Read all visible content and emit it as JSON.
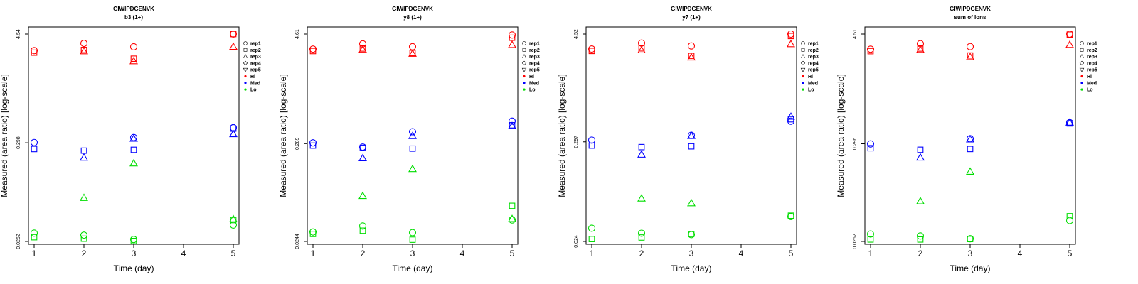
{
  "figure": {
    "shared_x_label": "Time (day)",
    "shared_y_label": "Measured (area ratio) [log-scale]",
    "legend": [
      {
        "label": "rep1",
        "shape": "circle"
      },
      {
        "label": "rep2",
        "shape": "square"
      },
      {
        "label": "rep3",
        "shape": "triangle"
      },
      {
        "label": "rep4",
        "shape": "diamond"
      },
      {
        "label": "rep5",
        "shape": "down-triangle"
      },
      {
        "label": "Hi",
        "shape": "dot",
        "color": "#ff0000"
      },
      {
        "label": "Med",
        "shape": "dot",
        "color": "#0000ff"
      },
      {
        "label": "Lo",
        "shape": "dot",
        "color": "#00dd00"
      }
    ],
    "colors": {
      "Hi": "#ff0000",
      "Med": "#0000ff",
      "Lo": "#00dd00",
      "axis": "#000000"
    }
  },
  "chart_data": [
    {
      "type": "scatter",
      "title": "GIWIPDGENVK",
      "subtitle": "b3 (1+)",
      "xlabel": "Time (day)",
      "ylabel": "Measured (area ratio) [log-scale]",
      "x_ticks": [
        "1",
        "2",
        "3",
        "4",
        "5"
      ],
      "xlim": [
        1,
        5
      ],
      "y_ticks": [
        "0.0252",
        "0.298",
        "4.54"
      ],
      "ylim": [
        0.0252,
        4.54
      ],
      "series": [
        {
          "group": "Hi",
          "points": [
            {
              "x": 1,
              "y": 3.0,
              "rep": "rep1"
            },
            {
              "x": 1,
              "y": 2.85,
              "rep": "rep2"
            },
            {
              "x": 2,
              "y": 3.6,
              "rep": "rep1"
            },
            {
              "x": 2,
              "y": 3.05,
              "rep": "rep2"
            },
            {
              "x": 2,
              "y": 2.95,
              "rep": "rep3"
            },
            {
              "x": 3,
              "y": 3.3,
              "rep": "rep1"
            },
            {
              "x": 3,
              "y": 2.45,
              "rep": "rep2"
            },
            {
              "x": 3,
              "y": 2.3,
              "rep": "rep3"
            },
            {
              "x": 5,
              "y": 4.54,
              "rep": "rep1"
            },
            {
              "x": 5,
              "y": 4.54,
              "rep": "rep2"
            },
            {
              "x": 5,
              "y": 3.3,
              "rep": "rep3"
            }
          ]
        },
        {
          "group": "Med",
          "points": [
            {
              "x": 1,
              "y": 0.3,
              "rep": "rep1"
            },
            {
              "x": 1,
              "y": 0.255,
              "rep": "rep2"
            },
            {
              "x": 2,
              "y": 0.245,
              "rep": "rep2"
            },
            {
              "x": 2,
              "y": 0.205,
              "rep": "rep3"
            },
            {
              "x": 3,
              "y": 0.34,
              "rep": "rep1"
            },
            {
              "x": 3,
              "y": 0.33,
              "rep": "rep3"
            },
            {
              "x": 3,
              "y": 0.25,
              "rep": "rep2"
            },
            {
              "x": 5,
              "y": 0.435,
              "rep": "rep1"
            },
            {
              "x": 5,
              "y": 0.425,
              "rep": "rep2"
            },
            {
              "x": 5,
              "y": 0.37,
              "rep": "rep3"
            }
          ]
        },
        {
          "group": "Lo",
          "points": [
            {
              "x": 1,
              "y": 0.031,
              "rep": "rep1"
            },
            {
              "x": 1,
              "y": 0.028,
              "rep": "rep2"
            },
            {
              "x": 2,
              "y": 0.0295,
              "rep": "rep1"
            },
            {
              "x": 2,
              "y": 0.027,
              "rep": "rep2"
            },
            {
              "x": 2,
              "y": 0.075,
              "rep": "rep3"
            },
            {
              "x": 3,
              "y": 0.0265,
              "rep": "rep1"
            },
            {
              "x": 3,
              "y": 0.0255,
              "rep": "rep2"
            },
            {
              "x": 3,
              "y": 0.178,
              "rep": "rep3"
            },
            {
              "x": 5,
              "y": 0.038,
              "rep": "rep1"
            },
            {
              "x": 5,
              "y": 0.043,
              "rep": "rep2"
            },
            {
              "x": 5,
              "y": 0.044,
              "rep": "rep3"
            }
          ]
        }
      ]
    },
    {
      "type": "scatter",
      "title": "GIWIPDGENVK",
      "subtitle": "y8 (1+)",
      "xlabel": "Time (day)",
      "ylabel": "Measured (area ratio) [log-scale]",
      "x_ticks": [
        "1",
        "2",
        "3",
        "4",
        "5"
      ],
      "xlim": [
        1,
        5
      ],
      "y_ticks": [
        "0.0244",
        "0.289",
        "4.61"
      ],
      "ylim": [
        0.0244,
        4.61
      ],
      "series": [
        {
          "group": "Hi",
          "points": [
            {
              "x": 1,
              "y": 3.15,
              "rep": "rep1"
            },
            {
              "x": 1,
              "y": 3.0,
              "rep": "rep2"
            },
            {
              "x": 2,
              "y": 3.6,
              "rep": "rep1"
            },
            {
              "x": 2,
              "y": 3.2,
              "rep": "rep2"
            },
            {
              "x": 2,
              "y": 3.1,
              "rep": "rep3"
            },
            {
              "x": 3,
              "y": 3.35,
              "rep": "rep1"
            },
            {
              "x": 3,
              "y": 2.85,
              "rep": "rep2"
            },
            {
              "x": 3,
              "y": 2.8,
              "rep": "rep3"
            },
            {
              "x": 5,
              "y": 4.5,
              "rep": "rep1"
            },
            {
              "x": 5,
              "y": 4.2,
              "rep": "rep2"
            },
            {
              "x": 5,
              "y": 3.5,
              "rep": "rep3"
            }
          ]
        },
        {
          "group": "Med",
          "points": [
            {
              "x": 1,
              "y": 0.295,
              "rep": "rep1"
            },
            {
              "x": 1,
              "y": 0.275,
              "rep": "rep2"
            },
            {
              "x": 2,
              "y": 0.265,
              "rep": "rep1"
            },
            {
              "x": 2,
              "y": 0.26,
              "rep": "rep2"
            },
            {
              "x": 2,
              "y": 0.2,
              "rep": "rep3"
            },
            {
              "x": 3,
              "y": 0.39,
              "rep": "rep1"
            },
            {
              "x": 3,
              "y": 0.35,
              "rep": "rep3"
            },
            {
              "x": 3,
              "y": 0.255,
              "rep": "rep2"
            },
            {
              "x": 5,
              "y": 0.51,
              "rep": "rep1"
            },
            {
              "x": 5,
              "y": 0.46,
              "rep": "rep2"
            },
            {
              "x": 5,
              "y": 0.45,
              "rep": "rep3"
            }
          ]
        },
        {
          "group": "Lo",
          "points": [
            {
              "x": 1,
              "y": 0.031,
              "rep": "rep1"
            },
            {
              "x": 1,
              "y": 0.0295,
              "rep": "rep2"
            },
            {
              "x": 2,
              "y": 0.036,
              "rep": "rep1"
            },
            {
              "x": 2,
              "y": 0.032,
              "rep": "rep2"
            },
            {
              "x": 2,
              "y": 0.077,
              "rep": "rep3"
            },
            {
              "x": 3,
              "y": 0.0305,
              "rep": "rep1"
            },
            {
              "x": 3,
              "y": 0.0255,
              "rep": "rep2"
            },
            {
              "x": 3,
              "y": 0.152,
              "rep": "rep3"
            },
            {
              "x": 5,
              "y": 0.042,
              "rep": "rep1"
            },
            {
              "x": 5,
              "y": 0.06,
              "rep": "rep2"
            },
            {
              "x": 5,
              "y": 0.043,
              "rep": "rep3"
            }
          ]
        }
      ]
    },
    {
      "type": "scatter",
      "title": "GIWIPDGENVK",
      "subtitle": "y7 (1+)",
      "xlabel": "Time (day)",
      "ylabel": "Measured (area ratio) [log-scale]",
      "x_ticks": [
        "1",
        "2",
        "3",
        "4",
        "5"
      ],
      "xlim": [
        1,
        5
      ],
      "y_ticks": [
        "0.024",
        "0.297",
        "4.52"
      ],
      "ylim": [
        0.024,
        4.52
      ],
      "series": [
        {
          "group": "Hi",
          "points": [
            {
              "x": 1,
              "y": 3.1,
              "rep": "rep1"
            },
            {
              "x": 1,
              "y": 2.95,
              "rep": "rep2"
            },
            {
              "x": 2,
              "y": 3.6,
              "rep": "rep1"
            },
            {
              "x": 2,
              "y": 3.15,
              "rep": "rep2"
            },
            {
              "x": 2,
              "y": 3.0,
              "rep": "rep3"
            },
            {
              "x": 3,
              "y": 3.35,
              "rep": "rep1"
            },
            {
              "x": 3,
              "y": 2.6,
              "rep": "rep2"
            },
            {
              "x": 3,
              "y": 2.5,
              "rep": "rep3"
            },
            {
              "x": 5,
              "y": 4.52,
              "rep": "rep1"
            },
            {
              "x": 5,
              "y": 4.3,
              "rep": "rep2"
            },
            {
              "x": 5,
              "y": 3.5,
              "rep": "rep3"
            }
          ]
        },
        {
          "group": "Med",
          "points": [
            {
              "x": 1,
              "y": 0.31,
              "rep": "rep1"
            },
            {
              "x": 1,
              "y": 0.27,
              "rep": "rep2"
            },
            {
              "x": 2,
              "y": 0.26,
              "rep": "rep2"
            },
            {
              "x": 2,
              "y": 0.215,
              "rep": "rep3"
            },
            {
              "x": 3,
              "y": 0.35,
              "rep": "rep1"
            },
            {
              "x": 3,
              "y": 0.345,
              "rep": "rep3"
            },
            {
              "x": 3,
              "y": 0.265,
              "rep": "rep2"
            },
            {
              "x": 5,
              "y": 0.5,
              "rep": "rep1"
            },
            {
              "x": 5,
              "y": 0.525,
              "rep": "rep2"
            },
            {
              "x": 5,
              "y": 0.56,
              "rep": "rep3"
            }
          ]
        },
        {
          "group": "Lo",
          "points": [
            {
              "x": 1,
              "y": 0.0335,
              "rep": "rep1"
            },
            {
              "x": 1,
              "y": 0.0255,
              "rep": "rep2"
            },
            {
              "x": 2,
              "y": 0.0295,
              "rep": "rep1"
            },
            {
              "x": 2,
              "y": 0.0265,
              "rep": "rep2"
            },
            {
              "x": 2,
              "y": 0.071,
              "rep": "rep3"
            },
            {
              "x": 3,
              "y": 0.0285,
              "rep": "rep1"
            },
            {
              "x": 3,
              "y": 0.029,
              "rep": "rep2"
            },
            {
              "x": 3,
              "y": 0.063,
              "rep": "rep3"
            },
            {
              "x": 5,
              "y": 0.045,
              "rep": "rep1"
            },
            {
              "x": 5,
              "y": 0.046,
              "rep": "rep2"
            }
          ]
        }
      ]
    },
    {
      "type": "scatter",
      "title": "GIWIPDGENVK",
      "subtitle": "sum of Ions",
      "xlabel": "Time (day)",
      "ylabel": "Measured (area ratio) [log-scale]",
      "x_ticks": [
        "1",
        "2",
        "3",
        "4",
        "5"
      ],
      "xlim": [
        1,
        5
      ],
      "y_ticks": [
        "0.0262",
        "0.296",
        "4.51"
      ],
      "ylim": [
        0.0262,
        4.51
      ],
      "series": [
        {
          "group": "Hi",
          "points": [
            {
              "x": 1,
              "y": 3.1,
              "rep": "rep1"
            },
            {
              "x": 1,
              "y": 2.95,
              "rep": "rep2"
            },
            {
              "x": 2,
              "y": 3.55,
              "rep": "rep1"
            },
            {
              "x": 2,
              "y": 3.15,
              "rep": "rep2"
            },
            {
              "x": 2,
              "y": 3.05,
              "rep": "rep3"
            },
            {
              "x": 3,
              "y": 3.3,
              "rep": "rep1"
            },
            {
              "x": 3,
              "y": 2.65,
              "rep": "rep2"
            },
            {
              "x": 3,
              "y": 2.55,
              "rep": "rep3"
            },
            {
              "x": 5,
              "y": 4.51,
              "rep": "rep1"
            },
            {
              "x": 5,
              "y": 4.45,
              "rep": "rep2"
            },
            {
              "x": 5,
              "y": 3.45,
              "rep": "rep3"
            }
          ]
        },
        {
          "group": "Med",
          "points": [
            {
              "x": 1,
              "y": 0.295,
              "rep": "rep1"
            },
            {
              "x": 1,
              "y": 0.265,
              "rep": "rep2"
            },
            {
              "x": 2,
              "y": 0.255,
              "rep": "rep2"
            },
            {
              "x": 2,
              "y": 0.21,
              "rep": "rep3"
            },
            {
              "x": 3,
              "y": 0.335,
              "rep": "rep1"
            },
            {
              "x": 3,
              "y": 0.33,
              "rep": "rep3"
            },
            {
              "x": 3,
              "y": 0.26,
              "rep": "rep2"
            },
            {
              "x": 5,
              "y": 0.5,
              "rep": "rep1"
            },
            {
              "x": 5,
              "y": 0.49,
              "rep": "rep2"
            },
            {
              "x": 5,
              "y": 0.5,
              "rep": "rep3"
            }
          ]
        },
        {
          "group": "Lo",
          "points": [
            {
              "x": 1,
              "y": 0.0315,
              "rep": "rep1"
            },
            {
              "x": 1,
              "y": 0.0275,
              "rep": "rep2"
            },
            {
              "x": 2,
              "y": 0.03,
              "rep": "rep1"
            },
            {
              "x": 2,
              "y": 0.0275,
              "rep": "rep2"
            },
            {
              "x": 2,
              "y": 0.071,
              "rep": "rep3"
            },
            {
              "x": 3,
              "y": 0.028,
              "rep": "rep1"
            },
            {
              "x": 3,
              "y": 0.0278,
              "rep": "rep2"
            },
            {
              "x": 3,
              "y": 0.148,
              "rep": "rep3"
            },
            {
              "x": 5,
              "y": 0.044,
              "rep": "rep1"
            },
            {
              "x": 5,
              "y": 0.049,
              "rep": "rep2"
            }
          ]
        }
      ]
    }
  ]
}
